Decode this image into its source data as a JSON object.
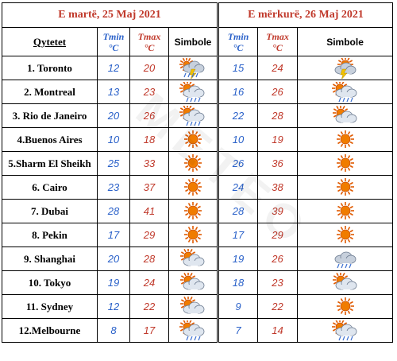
{
  "days": [
    {
      "label": "E martë, 25 Maj 2021"
    },
    {
      "label": "E mërkurë, 26 Maj 2021"
    }
  ],
  "headers": {
    "city": "Qytetet",
    "tmin": "Tmin",
    "tmax": "Tmax",
    "unit": "°C",
    "symbol": "Simbole"
  },
  "rows": [
    {
      "city": "1. Toronto",
      "d1": {
        "tmin": "12",
        "tmax": "20",
        "icon": "storm-cloud-icon"
      },
      "d2": {
        "tmin": "15",
        "tmax": "24",
        "icon": "storm-sun-icon"
      }
    },
    {
      "city": "2. Montreal",
      "d1": {
        "tmin": "13",
        "tmax": "23",
        "icon": "sun-rain-icon"
      },
      "d2": {
        "tmin": "16",
        "tmax": "26",
        "icon": "sun-rain-icon"
      }
    },
    {
      "city": "3. Rio de Janeiro",
      "d1": {
        "tmin": "20",
        "tmax": "26",
        "icon": "sun-rain-icon"
      },
      "d2": {
        "tmin": "22",
        "tmax": "28",
        "icon": "sun-cloud-icon"
      }
    },
    {
      "city": "4.Buenos Aires",
      "d1": {
        "tmin": "10",
        "tmax": "18",
        "icon": "sun-icon"
      },
      "d2": {
        "tmin": "10",
        "tmax": "19",
        "icon": "sun-icon"
      }
    },
    {
      "city": "5.Sharm El Sheikh",
      "d1": {
        "tmin": "25",
        "tmax": "33",
        "icon": "sun-icon"
      },
      "d2": {
        "tmin": "26",
        "tmax": "36",
        "icon": "sun-icon"
      }
    },
    {
      "city": "6. Cairo",
      "d1": {
        "tmin": "23",
        "tmax": "37",
        "icon": "sun-icon"
      },
      "d2": {
        "tmin": "24",
        "tmax": "38",
        "icon": "sun-icon"
      }
    },
    {
      "city": "7. Dubai",
      "d1": {
        "tmin": "28",
        "tmax": "41",
        "icon": "sun-icon"
      },
      "d2": {
        "tmin": "28",
        "tmax": "39",
        "icon": "sun-icon"
      }
    },
    {
      "city": "8. Pekin",
      "d1": {
        "tmin": "17",
        "tmax": "29",
        "icon": "sun-icon"
      },
      "d2": {
        "tmin": "17",
        "tmax": "29",
        "icon": "sun-icon"
      }
    },
    {
      "city": "9. Shanghai",
      "d1": {
        "tmin": "20",
        "tmax": "28",
        "icon": "sun-cloud-icon"
      },
      "d2": {
        "tmin": "19",
        "tmax": "26",
        "icon": "rain-cloud-icon"
      }
    },
    {
      "city": "10. Tokyo",
      "d1": {
        "tmin": "19",
        "tmax": "24",
        "icon": "sun-cloud-icon"
      },
      "d2": {
        "tmin": "18",
        "tmax": "23",
        "icon": "sun-cloud-icon"
      }
    },
    {
      "city": "11. Sydney",
      "d1": {
        "tmin": "12",
        "tmax": "22",
        "icon": "sun-cloud-icon"
      },
      "d2": {
        "tmin": "9",
        "tmax": "22",
        "icon": "sun-icon"
      }
    },
    {
      "city": "12.Melbourne",
      "d1": {
        "tmin": "8",
        "tmax": "17",
        "icon": "sun-rain-icon"
      },
      "d2": {
        "tmin": "7",
        "tmax": "14",
        "icon": "sun-rain-icon"
      }
    }
  ],
  "colors": {
    "tmin": "#2a61c9",
    "tmax": "#c0392b",
    "date": "#c0392b",
    "sun": "#f07c00"
  }
}
